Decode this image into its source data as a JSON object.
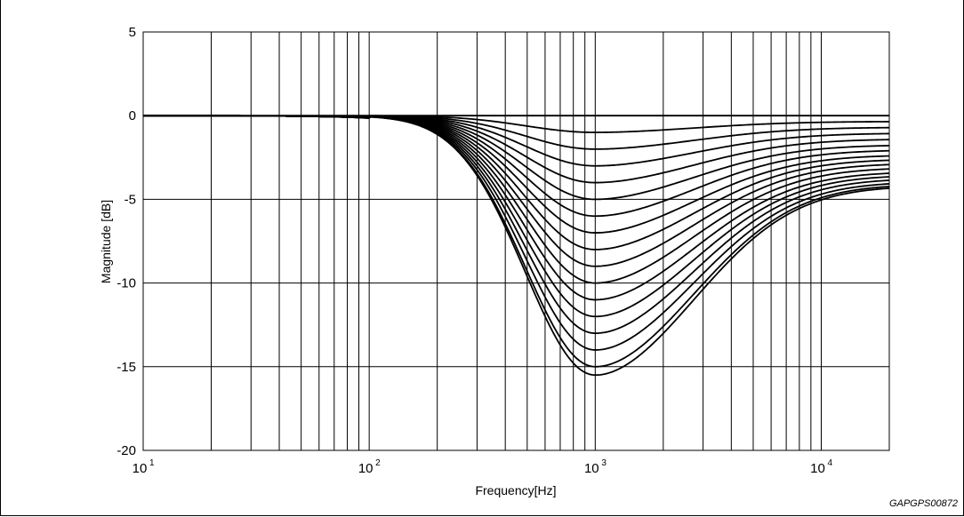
{
  "chart_data": {
    "type": "line",
    "title": "",
    "xlabel": "Frequency[Hz]",
    "ylabel": "Magnitude [dB]",
    "x_scale": "log",
    "xlim": [
      10,
      20000
    ],
    "ylim": [
      -20,
      5
    ],
    "grid": true,
    "legend": "none",
    "x_ticks": [
      {
        "base": "10",
        "exp": "1"
      },
      {
        "base": "10",
        "exp": "2"
      },
      {
        "base": "10",
        "exp": "3"
      },
      {
        "base": "10",
        "exp": "4"
      }
    ],
    "y_ticks": [
      "5",
      "0",
      "-5",
      "-10",
      "-15",
      "-20"
    ],
    "center_frequency_hz": 1000,
    "series_depth_db": [
      0,
      1,
      2,
      3,
      4,
      5,
      6,
      7,
      8,
      9,
      10,
      11,
      12,
      13,
      14,
      15,
      15.5
    ],
    "series_right_end_db": [
      0,
      -0.35,
      -0.7,
      -1.05,
      -1.4,
      -1.75,
      -2.05,
      -2.35,
      -2.6,
      -2.85,
      -3.1,
      -3.35,
      -3.55,
      -3.75,
      -3.95,
      -4.1,
      -4.2
    ],
    "series_low_shelf_db": -0.1,
    "color": "#000000"
  },
  "figure_ref": "GAPGPS00872"
}
